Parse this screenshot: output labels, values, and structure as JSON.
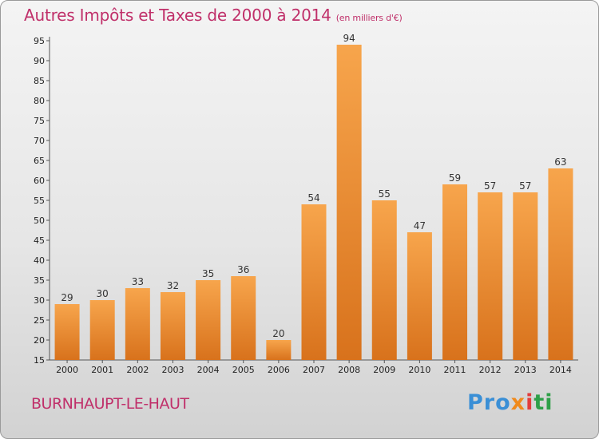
{
  "chart_data": {
    "type": "bar",
    "title": "Autres Impôts et Taxes de 2000 à 2014",
    "subtitle": "(en milliers d'€)",
    "categories": [
      "2000",
      "2001",
      "2002",
      "2003",
      "2004",
      "2005",
      "2006",
      "2007",
      "2008",
      "2009",
      "2010",
      "2011",
      "2012",
      "2013",
      "2014"
    ],
    "values": [
      29,
      30,
      33,
      32,
      35,
      36,
      20,
      54,
      94,
      55,
      47,
      59,
      57,
      57,
      63
    ],
    "ylim": [
      15,
      95
    ],
    "yticks": [
      15,
      20,
      25,
      30,
      35,
      40,
      45,
      50,
      55,
      60,
      65,
      70,
      75,
      80,
      85,
      90,
      95
    ],
    "grid": false,
    "bar_color": "#f08c2a"
  },
  "location": "BURNHAUPT-LE-HAUT",
  "logo": {
    "p1": "Pro",
    "p2": "x",
    "p3": "i",
    "p4": "ti"
  },
  "colors": {
    "accent": "#c0306a"
  }
}
